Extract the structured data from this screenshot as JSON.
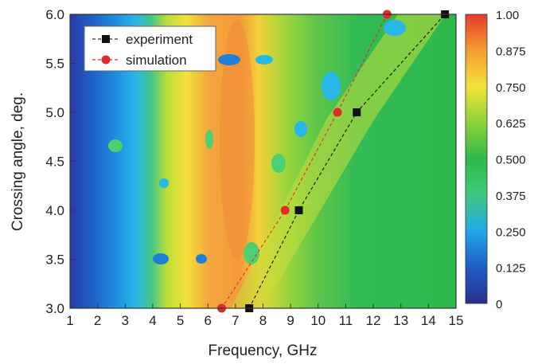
{
  "chart_data": {
    "type": "heatmap",
    "xlabel": "Frequency, GHz",
    "ylabel": "Crossing angle, deg.",
    "xlim": [
      1,
      15
    ],
    "ylim": [
      3.0,
      6.0
    ],
    "x_ticks": [
      "1",
      "2",
      "3",
      "4",
      "5",
      "6",
      "7",
      "8",
      "9",
      "10",
      "11",
      "12",
      "13",
      "14",
      "15"
    ],
    "y_ticks": [
      "3.0",
      "3.5",
      "4.0",
      "4.5",
      "5.0",
      "5.5",
      "6.0"
    ],
    "colorbar": {
      "min": 0,
      "max": 1,
      "tick_labels": [
        "1.00",
        "0.875",
        "0.750",
        "0.625",
        "0.500",
        "0.375",
        "0.250",
        "0.125",
        "0"
      ],
      "stops": [
        "#2b2f8f",
        "#1f5fc7",
        "#22a7e6",
        "#3fc97a",
        "#2fb84a",
        "#8fd33a",
        "#f2e23a",
        "#f49a32",
        "#e8392c"
      ]
    },
    "legend": {
      "position": "top-left",
      "entries": [
        {
          "label": "experiment",
          "marker": "square",
          "color": "#111111"
        },
        {
          "label": "simulation",
          "marker": "circle",
          "color": "#e02a2a"
        }
      ]
    },
    "series": [
      {
        "name": "experiment",
        "points": [
          [
            7.5,
            3.0
          ],
          [
            9.3,
            4.0
          ],
          [
            11.4,
            5.0
          ],
          [
            14.6,
            6.0
          ]
        ]
      },
      {
        "name": "simulation",
        "points": [
          [
            6.5,
            3.0
          ],
          [
            8.8,
            4.0
          ],
          [
            10.7,
            5.0
          ],
          [
            12.5,
            6.0
          ]
        ]
      }
    ],
    "field_colors": {
      "blue_dark": "#2b3aa8",
      "blue": "#1e7fd8",
      "cyan": "#27b7e8",
      "green": "#33bb55",
      "yellow_green": "#b9dd3b",
      "yellow": "#f4e23a",
      "orange": "#f39a3b"
    }
  }
}
